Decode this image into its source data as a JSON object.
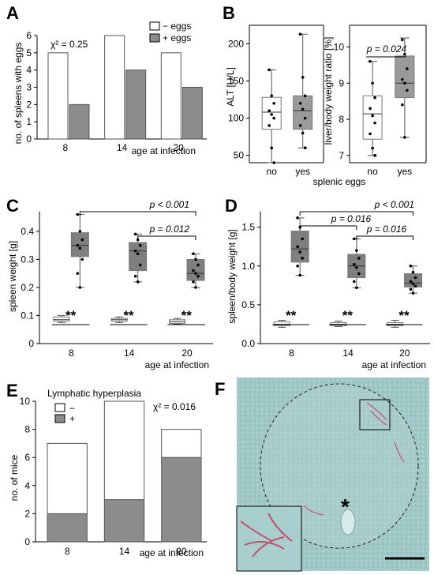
{
  "panels": {
    "A": {
      "letter": "A",
      "chi": "χ² = 0.25",
      "legend": [
        "− eggs",
        "+ eggs"
      ],
      "ylabel": "no. of spleens with eggs",
      "xlabel": "age at infection",
      "colors": {
        "minus": "#ffffff",
        "plus": "#8c8c8c"
      }
    },
    "B": {
      "letter": "B",
      "alt_ylabel": "ALT [U/L]",
      "ratio_ylabel": "liver/body weight ratio  [%]",
      "p_text": "p = 0.024",
      "cats": [
        "no",
        "yes"
      ],
      "xlabel": "splenic eggs"
    },
    "C": {
      "letter": "C",
      "ylabel": "spleen weight [g]",
      "xlabel": "age at infection",
      "p1": "p < 0.001",
      "p2": "p = 0.012",
      "stars": "**"
    },
    "D": {
      "letter": "D",
      "ylabel": "spleen/body weight [g]",
      "xlabel": "age at infection",
      "p1": "p < 0.001",
      "p2": "p = 0.016",
      "p3": "p = 0.016",
      "stars": "**"
    },
    "E": {
      "letter": "E",
      "title": "Lymphatic hyperplasia",
      "chi": "χ² = 0.016",
      "legend": [
        "–",
        "+"
      ],
      "ylabel": "no. of mice",
      "xlabel": "age at infection"
    },
    "F": {
      "letter": "F",
      "asterisk": "*"
    }
  },
  "chart_data": [
    {
      "id": "A",
      "type": "bar",
      "categories": [
        "8",
        "14",
        "20"
      ],
      "series": [
        {
          "name": "− eggs",
          "values": [
            5,
            6,
            5
          ]
        },
        {
          "name": "+ eggs",
          "values": [
            2,
            4,
            3
          ]
        }
      ],
      "ylim": [
        0,
        6
      ],
      "yticks": [
        0,
        1,
        2,
        3,
        4,
        5,
        6
      ]
    },
    {
      "id": "B-ALT",
      "type": "box",
      "categories": [
        "no",
        "yes"
      ],
      "boxes": [
        {
          "min": 40,
          "q1": 85,
          "median": 108,
          "q3": 128,
          "max": 165
        },
        {
          "min": 60,
          "q1": 85,
          "median": 110,
          "q3": 130,
          "max": 213
        }
      ],
      "points": [
        [
          165,
          130,
          120,
          110,
          105,
          100,
          90,
          60,
          40
        ],
        [
          213,
          155,
          130,
          120,
          112,
          100,
          90,
          80,
          60
        ]
      ],
      "ylim": [
        40,
        225
      ],
      "yticks": [
        50,
        100,
        150,
        200
      ]
    },
    {
      "id": "B-ratio",
      "type": "box",
      "categories": [
        "no",
        "yes"
      ],
      "boxes": [
        {
          "min": 7.0,
          "q1": 7.45,
          "median": 8.15,
          "q3": 8.65,
          "max": 9.6
        },
        {
          "min": 7.5,
          "q1": 8.6,
          "median": 9.0,
          "q3": 9.75,
          "max": 10.25
        }
      ],
      "points": [
        [
          9.6,
          9.0,
          8.6,
          8.3,
          8.1,
          7.9,
          7.6,
          7.2,
          7.0
        ],
        [
          10.2,
          9.8,
          9.4,
          9.1,
          9.0,
          8.8,
          8.4,
          7.5
        ]
      ],
      "ylim": [
        6.8,
        10.6
      ],
      "yticks": [
        7,
        8,
        9,
        10
      ]
    },
    {
      "id": "C",
      "type": "box",
      "categories": [
        "8",
        "14",
        "20"
      ],
      "groups": [
        {
          "cat": "8",
          "minus": {
            "min": 0.075,
            "q1": 0.08,
            "median": 0.085,
            "q3": 0.095,
            "max": 0.1
          },
          "plus": {
            "min": 0.2,
            "q1": 0.31,
            "median": 0.35,
            "q3": 0.395,
            "max": 0.46
          }
        },
        {
          "cat": "14",
          "minus": {
            "min": 0.075,
            "q1": 0.08,
            "median": 0.085,
            "q3": 0.09,
            "max": 0.095
          },
          "plus": {
            "min": 0.22,
            "q1": 0.26,
            "median": 0.33,
            "q3": 0.36,
            "max": 0.39
          }
        },
        {
          "cat": "20",
          "minus": {
            "min": 0.07,
            "q1": 0.072,
            "median": 0.078,
            "q3": 0.085,
            "max": 0.09
          },
          "plus": {
            "min": 0.2,
            "q1": 0.225,
            "median": 0.25,
            "q3": 0.3,
            "max": 0.32
          }
        }
      ],
      "plus_points": [
        [
          0.46,
          0.4,
          0.37,
          0.35,
          0.34,
          0.3,
          0.25,
          0.2
        ],
        [
          0.39,
          0.37,
          0.35,
          0.33,
          0.32,
          0.28,
          0.24,
          0.22
        ],
        [
          0.32,
          0.3,
          0.28,
          0.26,
          0.25,
          0.24,
          0.22,
          0.2
        ]
      ],
      "ylim": [
        0,
        0.47
      ],
      "yticks": [
        0,
        0.1,
        0.2,
        0.3,
        0.4
      ]
    },
    {
      "id": "D",
      "type": "box",
      "categories": [
        "8",
        "14",
        "20"
      ],
      "groups": [
        {
          "cat": "8",
          "minus": {
            "min": 0.21,
            "q1": 0.23,
            "median": 0.25,
            "q3": 0.28,
            "max": 0.3
          },
          "plus": {
            "min": 0.88,
            "q1": 1.05,
            "median": 1.22,
            "q3": 1.45,
            "max": 1.62
          }
        },
        {
          "cat": "14",
          "minus": {
            "min": 0.22,
            "q1": 0.23,
            "median": 0.25,
            "q3": 0.27,
            "max": 0.29
          },
          "plus": {
            "min": 0.72,
            "q1": 0.85,
            "median": 1.0,
            "q3": 1.15,
            "max": 1.35
          }
        },
        {
          "cat": "20",
          "minus": {
            "min": 0.21,
            "q1": 0.23,
            "median": 0.25,
            "q3": 0.27,
            "max": 0.3
          },
          "plus": {
            "min": 0.65,
            "q1": 0.73,
            "median": 0.78,
            "q3": 0.9,
            "max": 1.0
          }
        }
      ],
      "plus_points": [
        [
          1.62,
          1.5,
          1.35,
          1.25,
          1.18,
          1.1,
          1.0,
          0.88
        ],
        [
          1.35,
          1.2,
          1.1,
          1.02,
          0.98,
          0.9,
          0.8,
          0.72
        ],
        [
          1.0,
          0.92,
          0.85,
          0.8,
          0.77,
          0.74,
          0.7,
          0.65
        ]
      ],
      "ylim": [
        0,
        1.7
      ],
      "yticks": [
        0,
        0.5,
        1.0,
        1.5
      ]
    },
    {
      "id": "E",
      "type": "bar",
      "stacked": true,
      "categories": [
        "8",
        "14",
        "20"
      ],
      "series": [
        {
          "name": "+",
          "values": [
            2,
            3,
            6
          ]
        },
        {
          "name": "–",
          "values": [
            5,
            7,
            2
          ]
        }
      ],
      "ylim": [
        0,
        10
      ],
      "yticks": [
        0,
        2,
        4,
        6,
        8,
        10
      ]
    }
  ]
}
